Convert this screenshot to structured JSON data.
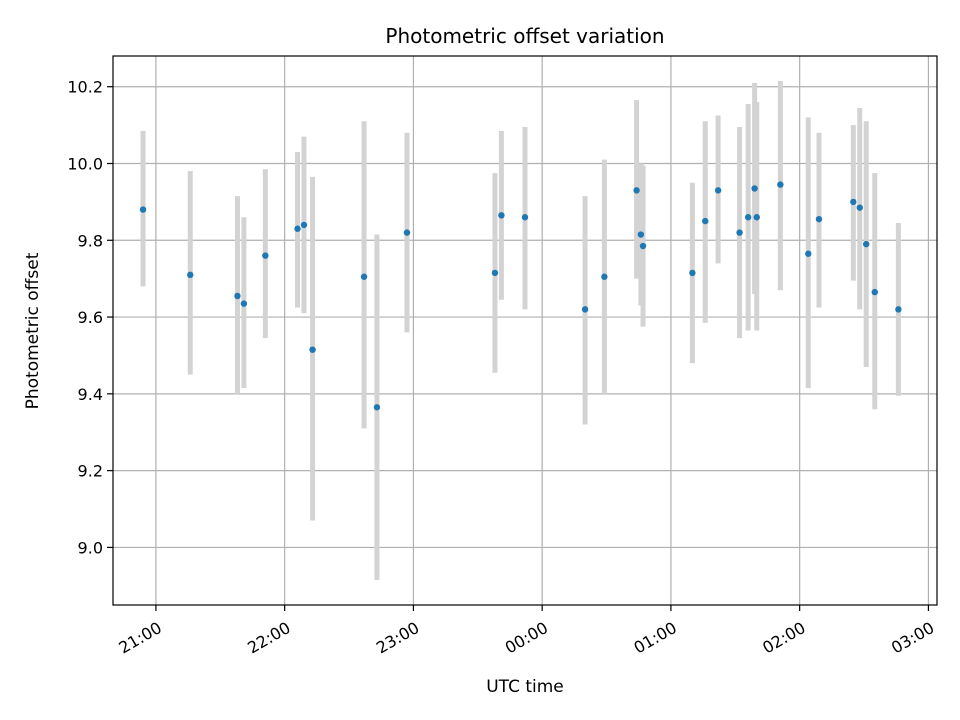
{
  "chart_data": {
    "type": "scatter",
    "title": "Photometric offset variation",
    "xlabel": "UTC time",
    "ylabel": "Photometric offset",
    "x_ticks": [
      "21:00",
      "22:00",
      "23:00",
      "00:00",
      "01:00",
      "02:00",
      "03:00"
    ],
    "x_tick_hours": [
      21,
      22,
      23,
      24,
      25,
      26,
      27
    ],
    "y_ticks": [
      "9.0",
      "9.2",
      "9.4",
      "9.6",
      "9.8",
      "10.0",
      "10.2"
    ],
    "y_tick_values": [
      9.0,
      9.2,
      9.4,
      9.6,
      9.8,
      10.0,
      10.2
    ],
    "xlim": [
      "20:40",
      "03:04"
    ],
    "ylim": [
      8.85,
      10.28
    ],
    "grid": true,
    "colors": {
      "point": "#1f77b4",
      "errorbar": "#d3d3d3",
      "grid": "#b0b0b0",
      "axes": "#000000"
    },
    "points": [
      {
        "t": "20:54",
        "y": 9.88,
        "lo": 9.68,
        "hi": 10.085
      },
      {
        "t": "21:16",
        "y": 9.71,
        "lo": 9.45,
        "hi": 9.98
      },
      {
        "t": "21:38",
        "y": 9.655,
        "lo": 9.4,
        "hi": 9.915
      },
      {
        "t": "21:41",
        "y": 9.635,
        "lo": 9.415,
        "hi": 9.86
      },
      {
        "t": "21:51",
        "y": 9.76,
        "lo": 9.545,
        "hi": 9.985
      },
      {
        "t": "22:06",
        "y": 9.83,
        "lo": 9.625,
        "hi": 10.03
      },
      {
        "t": "22:09",
        "y": 9.84,
        "lo": 9.61,
        "hi": 10.07
      },
      {
        "t": "22:13",
        "y": 9.515,
        "lo": 9.07,
        "hi": 9.965
      },
      {
        "t": "22:37",
        "y": 9.705,
        "lo": 9.31,
        "hi": 10.11
      },
      {
        "t": "22:43",
        "y": 9.365,
        "lo": 8.915,
        "hi": 9.815
      },
      {
        "t": "22:57",
        "y": 9.82,
        "lo": 9.56,
        "hi": 10.08
      },
      {
        "t": "23:38",
        "y": 9.715,
        "lo": 9.455,
        "hi": 9.975
      },
      {
        "t": "23:41",
        "y": 9.865,
        "lo": 9.645,
        "hi": 10.085
      },
      {
        "t": "23:52",
        "y": 9.86,
        "lo": 9.62,
        "hi": 10.095
      },
      {
        "t": "00:20",
        "y": 9.62,
        "lo": 9.32,
        "hi": 9.915
      },
      {
        "t": "00:29",
        "y": 9.705,
        "lo": 9.4,
        "hi": 10.01
      },
      {
        "t": "00:44",
        "y": 9.93,
        "lo": 9.7,
        "hi": 10.165
      },
      {
        "t": "00:46",
        "y": 9.815,
        "lo": 9.63,
        "hi": 10.0
      },
      {
        "t": "00:47",
        "y": 9.785,
        "lo": 9.575,
        "hi": 9.995
      },
      {
        "t": "01:10",
        "y": 9.715,
        "lo": 9.48,
        "hi": 9.95
      },
      {
        "t": "01:16",
        "y": 9.85,
        "lo": 9.585,
        "hi": 10.11
      },
      {
        "t": "01:22",
        "y": 9.93,
        "lo": 9.74,
        "hi": 10.125
      },
      {
        "t": "01:32",
        "y": 9.82,
        "lo": 9.545,
        "hi": 10.095
      },
      {
        "t": "01:36",
        "y": 9.86,
        "lo": 9.565,
        "hi": 10.155
      },
      {
        "t": "01:39",
        "y": 9.935,
        "lo": 9.66,
        "hi": 10.21
      },
      {
        "t": "01:40",
        "y": 9.86,
        "lo": 9.565,
        "hi": 10.16
      },
      {
        "t": "01:51",
        "y": 9.945,
        "lo": 9.67,
        "hi": 10.215
      },
      {
        "t": "02:04",
        "y": 9.765,
        "lo": 9.415,
        "hi": 10.12
      },
      {
        "t": "02:09",
        "y": 9.855,
        "lo": 9.625,
        "hi": 10.08
      },
      {
        "t": "02:25",
        "y": 9.9,
        "lo": 9.695,
        "hi": 10.1
      },
      {
        "t": "02:28",
        "y": 9.885,
        "lo": 9.62,
        "hi": 10.145
      },
      {
        "t": "02:31",
        "y": 9.79,
        "lo": 9.47,
        "hi": 10.11
      },
      {
        "t": "02:35",
        "y": 9.665,
        "lo": 9.36,
        "hi": 9.975
      },
      {
        "t": "02:46",
        "y": 9.62,
        "lo": 9.395,
        "hi": 9.845
      }
    ]
  }
}
